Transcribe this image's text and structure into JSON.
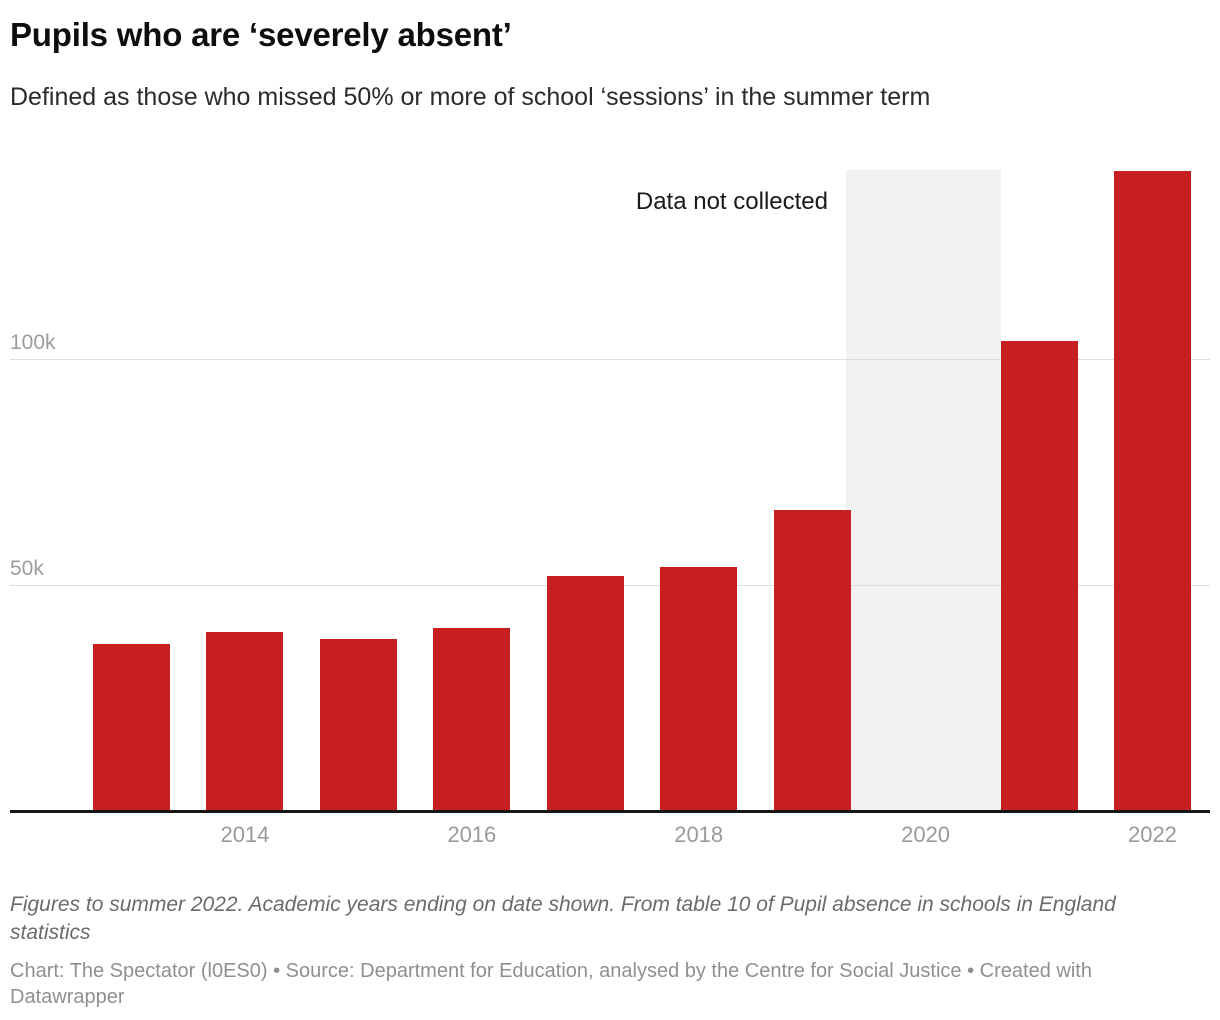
{
  "header": {
    "title": "Pupils who are ‘severely absent’",
    "subtitle": "Defined as those who missed 50% or more of school ‘sessions’ in the summer term"
  },
  "chart_data": {
    "type": "bar",
    "title": "Pupils who are ‘severely absent’",
    "subtitle": "Defined as those who missed 50% or more of school ‘sessions’ in the summer term",
    "categories": [
      "2013",
      "2014",
      "2015",
      "2016",
      "2017",
      "2018",
      "2019",
      "2020",
      "2021",
      "2022"
    ],
    "values": [
      37000,
      39500,
      38000,
      40500,
      52000,
      54000,
      66500,
      null,
      104000,
      141500
    ],
    "missing_category": "2020",
    "annotation": "Data not collected",
    "x_tick_labels": [
      "2014",
      "2016",
      "2018",
      "2020",
      "2022"
    ],
    "y_ticks": [
      {
        "label": "50k",
        "value": 50000
      },
      {
        "label": "100k",
        "value": 100000
      }
    ],
    "ylim": [
      0,
      141500
    ],
    "xlabel": "",
    "ylabel": "",
    "grid": "horizontal",
    "legend": "none",
    "bar_color": "#c71f1f",
    "missing_region_color": "#f2f2f2",
    "gridline_color": "#dedede",
    "axis_line_color": "#161616",
    "tick_label_color": "#9a9a9a"
  },
  "footer": {
    "note": "Figures to summer 2022. Academic years ending on date shown. From table 10 of Pupil absence in schools in England statistics",
    "credit": "Chart: The Spectator (l0ES0) • Source: Department for Education, analysed by the Centre for Social Justice • Created with Datawrapper"
  }
}
